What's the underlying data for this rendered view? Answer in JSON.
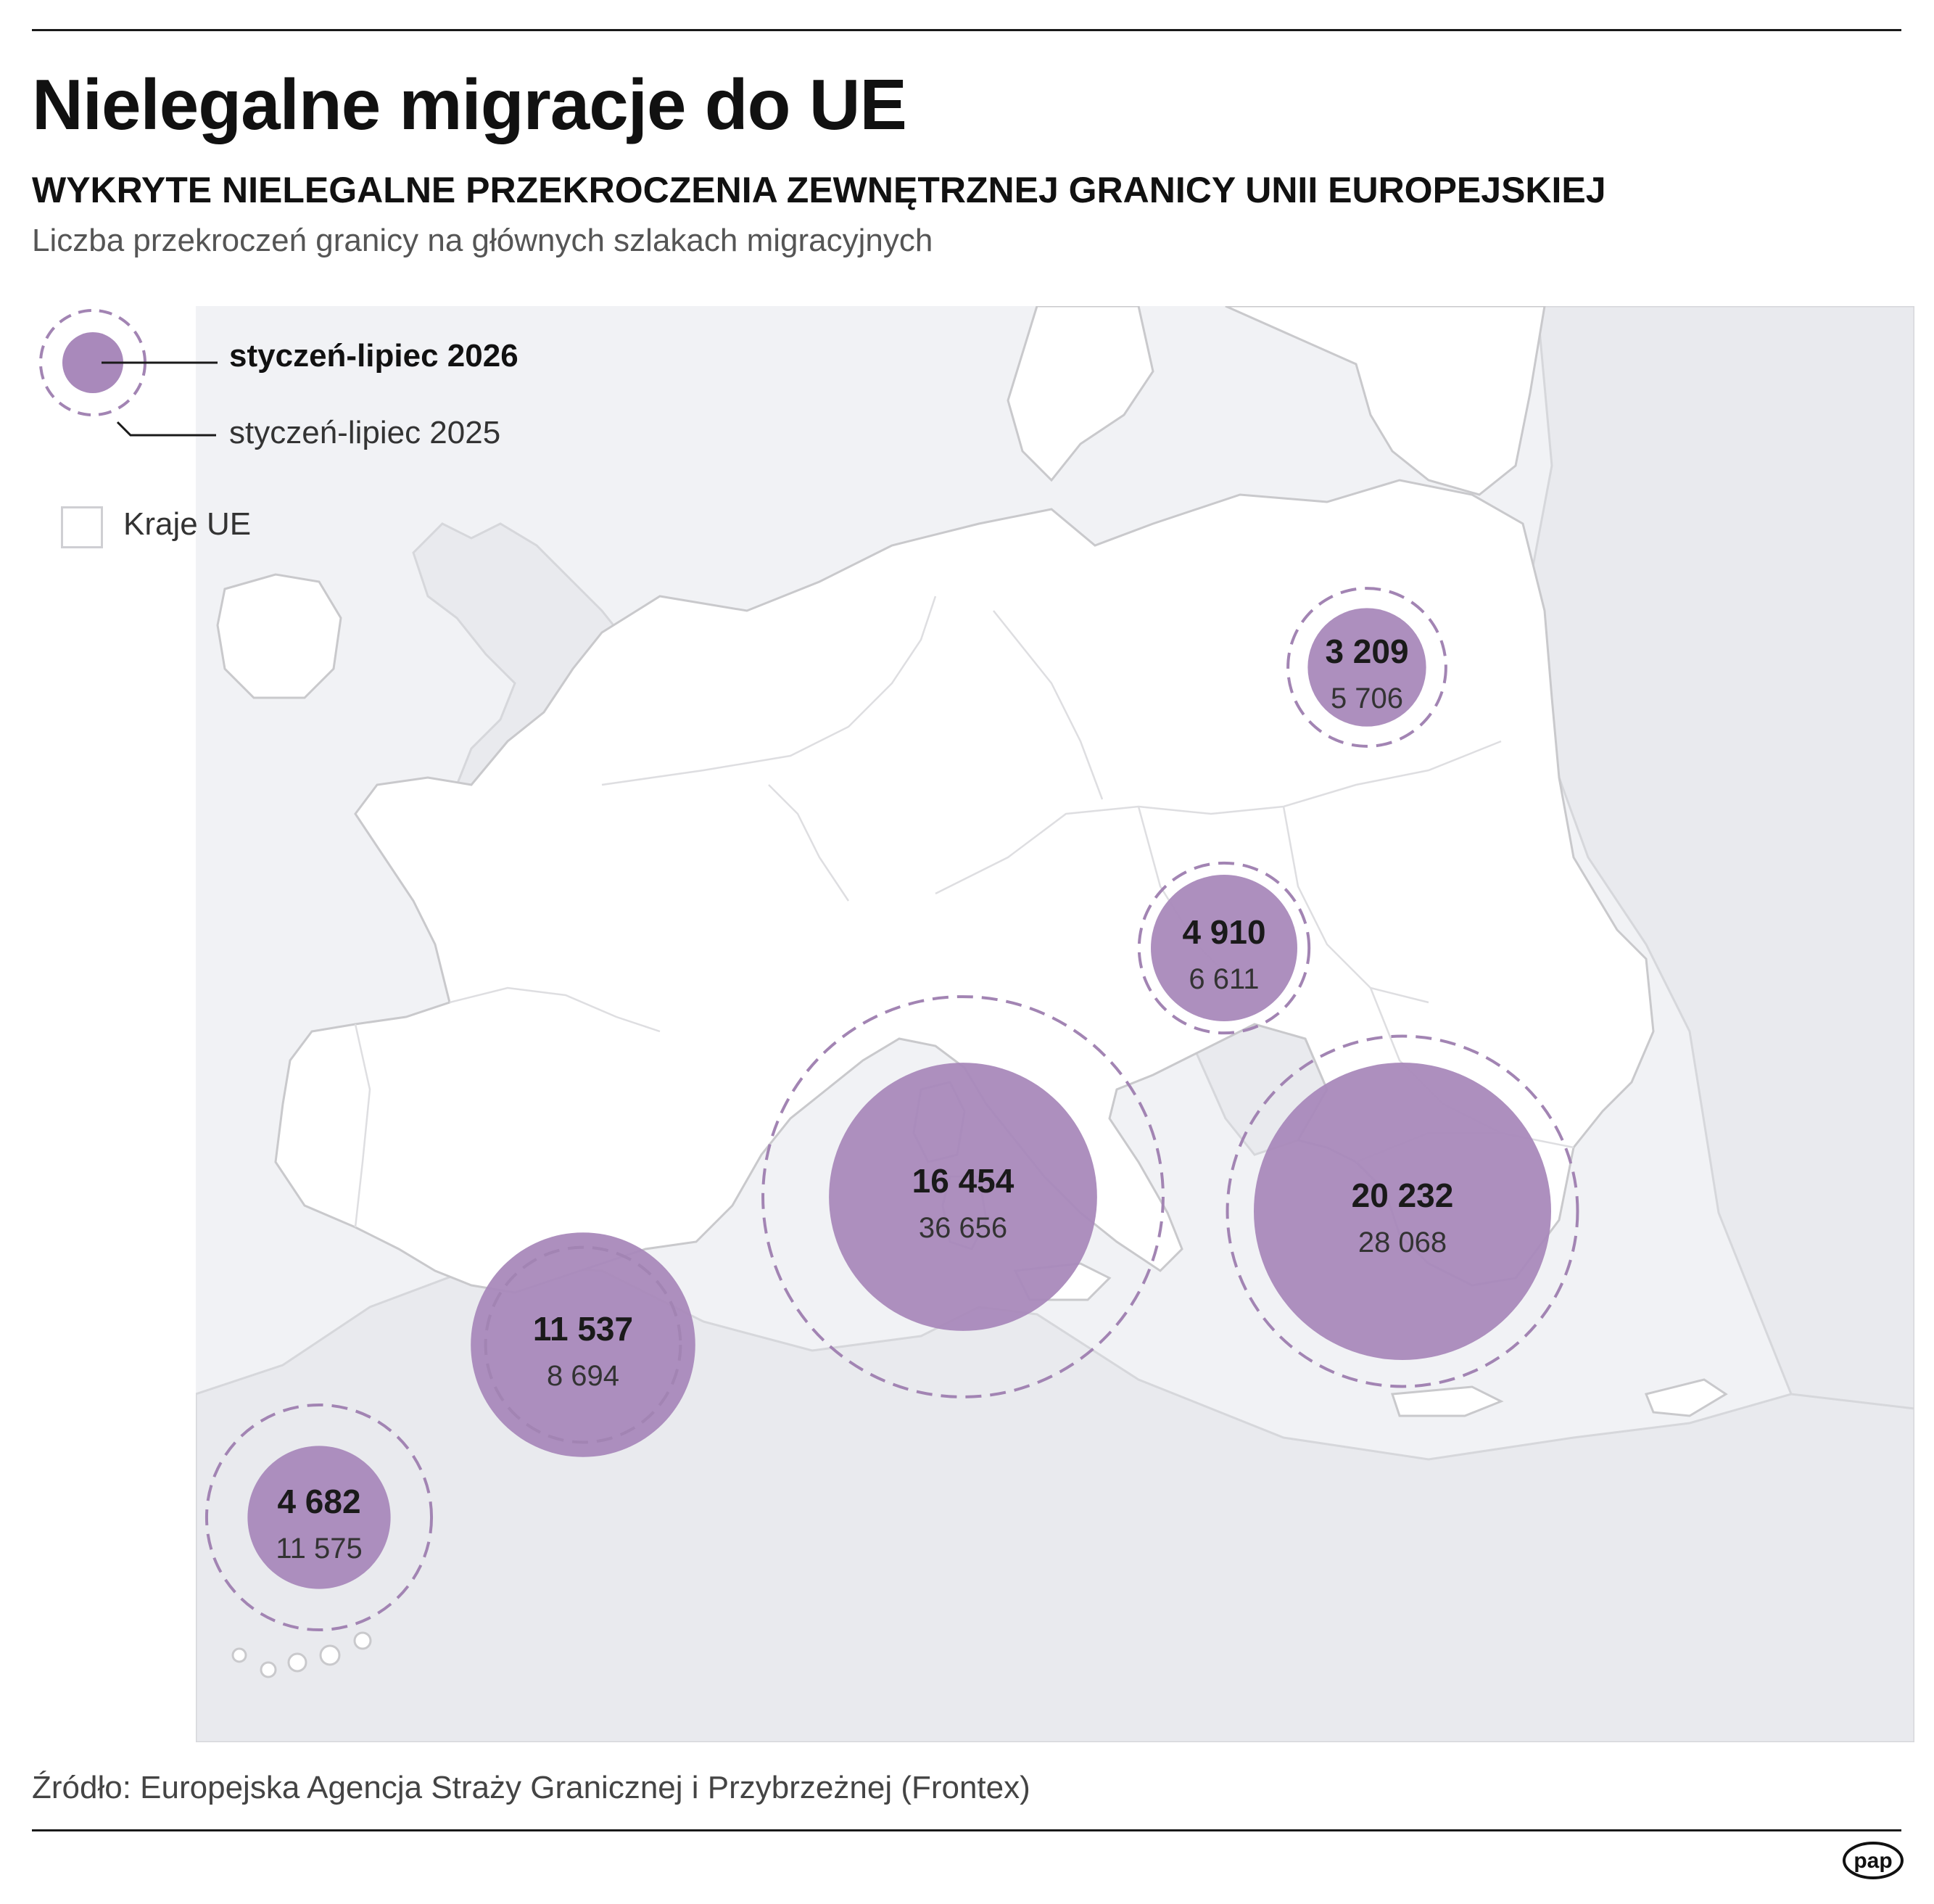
{
  "title": "Nielegalne migracje do UE",
  "subtitle": "WYKRYTE NIELEGALNE PRZEKROCZENIA ZEWNĘTRZNEJ GRANICY UNII EUROPEJSKIEJ",
  "description": "Liczba przekroczeń granicy na głównych szlakach migracyjnych",
  "legend": {
    "current_label": "styczeń-lipiec 2026",
    "previous_label": "styczeń-lipiec 2025",
    "eu_label": "Kraje UE"
  },
  "colors": {
    "bubble_fill": "#a989bb",
    "dashed_ring": "#a284b3",
    "sea": "#f1f2f5",
    "eu_land": "#ffffff",
    "non_eu_land": "#e9eaee",
    "border": "#c9c9cc"
  },
  "routes": [
    {
      "current": "3 209",
      "previous": "5 706",
      "value_2026": 3209,
      "value_2025": 5706
    },
    {
      "current": "4 910",
      "previous": "6 611",
      "value_2026": 4910,
      "value_2025": 6611
    },
    {
      "current": "16 454",
      "previous": "36 656",
      "value_2026": 16454,
      "value_2025": 36656
    },
    {
      "current": "20 232",
      "previous": "28 068",
      "value_2026": 20232,
      "value_2025": 28068
    },
    {
      "current": "11 537",
      "previous": "8 694",
      "value_2026": 11537,
      "value_2025": 8694
    },
    {
      "current": "4 682",
      "previous": "11 575",
      "value_2026": 4682,
      "value_2025": 11575
    }
  ],
  "source": "Źródło: Europejska Agencja Straży Granicznej i Przybrzeżnej (Frontex)",
  "logo_text": "pap"
}
